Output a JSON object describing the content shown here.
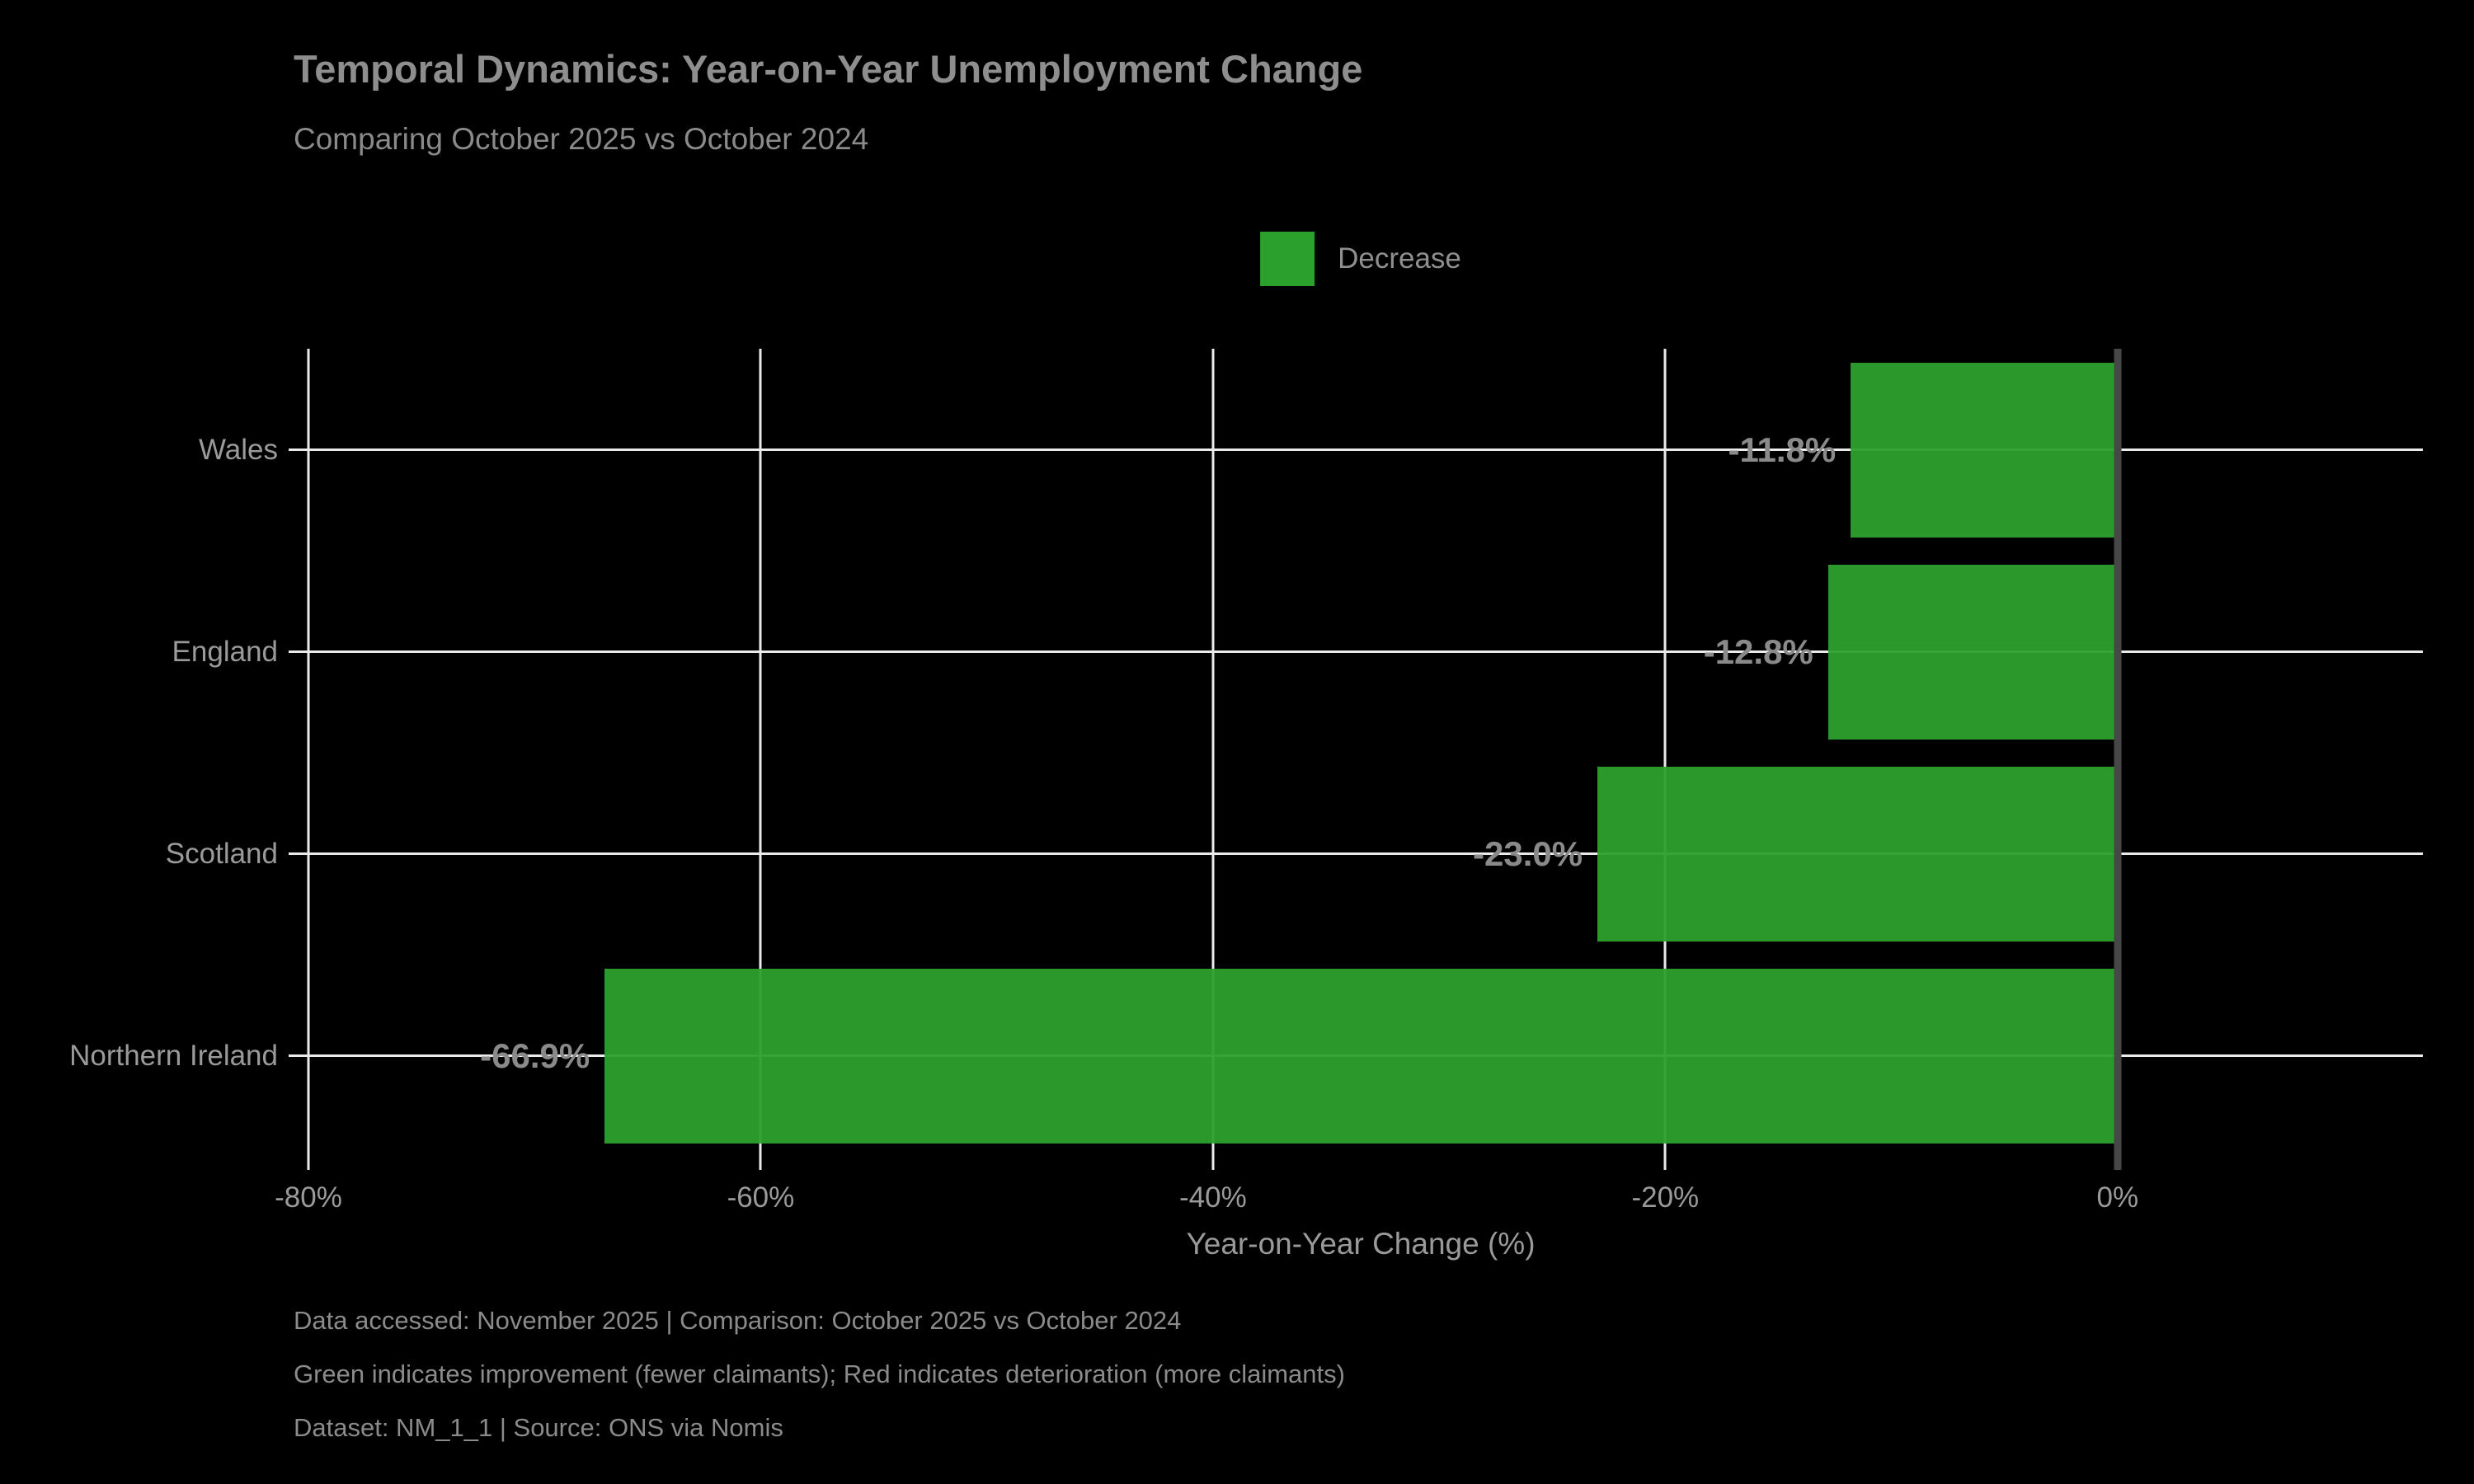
{
  "page": {
    "background_color": "#000000",
    "text_color_primary": "#8e8e8e",
    "text_color_secondary": "#9a9a9a"
  },
  "header": {
    "title": "Temporal Dynamics: Year-on-Year Unemployment Change",
    "subtitle": "Comparing October 2025 vs October 2024"
  },
  "legend": {
    "entries": [
      {
        "label": "Decrease",
        "color": "#2ca02c"
      }
    ]
  },
  "chart_data": {
    "type": "bar",
    "orientation": "horizontal",
    "title": "Temporal Dynamics: Year-on-Year Unemployment Change",
    "subtitle": "Comparing October 2025 vs October 2024",
    "categories": [
      "Wales",
      "England",
      "Scotland",
      "Northern Ireland"
    ],
    "values": [
      -11.8,
      -12.8,
      -23.0,
      -66.9
    ],
    "value_labels": [
      "-11.8%",
      "-12.8%",
      "-23.0%",
      "-66.9%"
    ],
    "bar_color": "#2ca02c",
    "bar_opacity": 0.95,
    "xlabel": "Year-on-Year Change (%)",
    "xlim": [
      -80.4,
      13.5
    ],
    "xticks": [
      -80,
      -60,
      -40,
      -20,
      0
    ],
    "xtick_labels": [
      "-80%",
      "-60%",
      "-40%",
      "-20%",
      "0%"
    ],
    "grid": true,
    "grid_color": "#ebebeb",
    "zero_line_value": 0,
    "zero_line_color": "#474747",
    "legend_position": "upper center",
    "legend_entries": [
      {
        "label": "Decrease",
        "color": "#2ca02c"
      }
    ]
  },
  "footer": {
    "lines": [
      "Data accessed: November 2025 | Comparison: October 2025 vs October 2024",
      "Green indicates improvement (fewer claimants); Red indicates deterioration (more claimants)",
      "Dataset: NM_1_1 | Source: ONS via Nomis"
    ]
  }
}
